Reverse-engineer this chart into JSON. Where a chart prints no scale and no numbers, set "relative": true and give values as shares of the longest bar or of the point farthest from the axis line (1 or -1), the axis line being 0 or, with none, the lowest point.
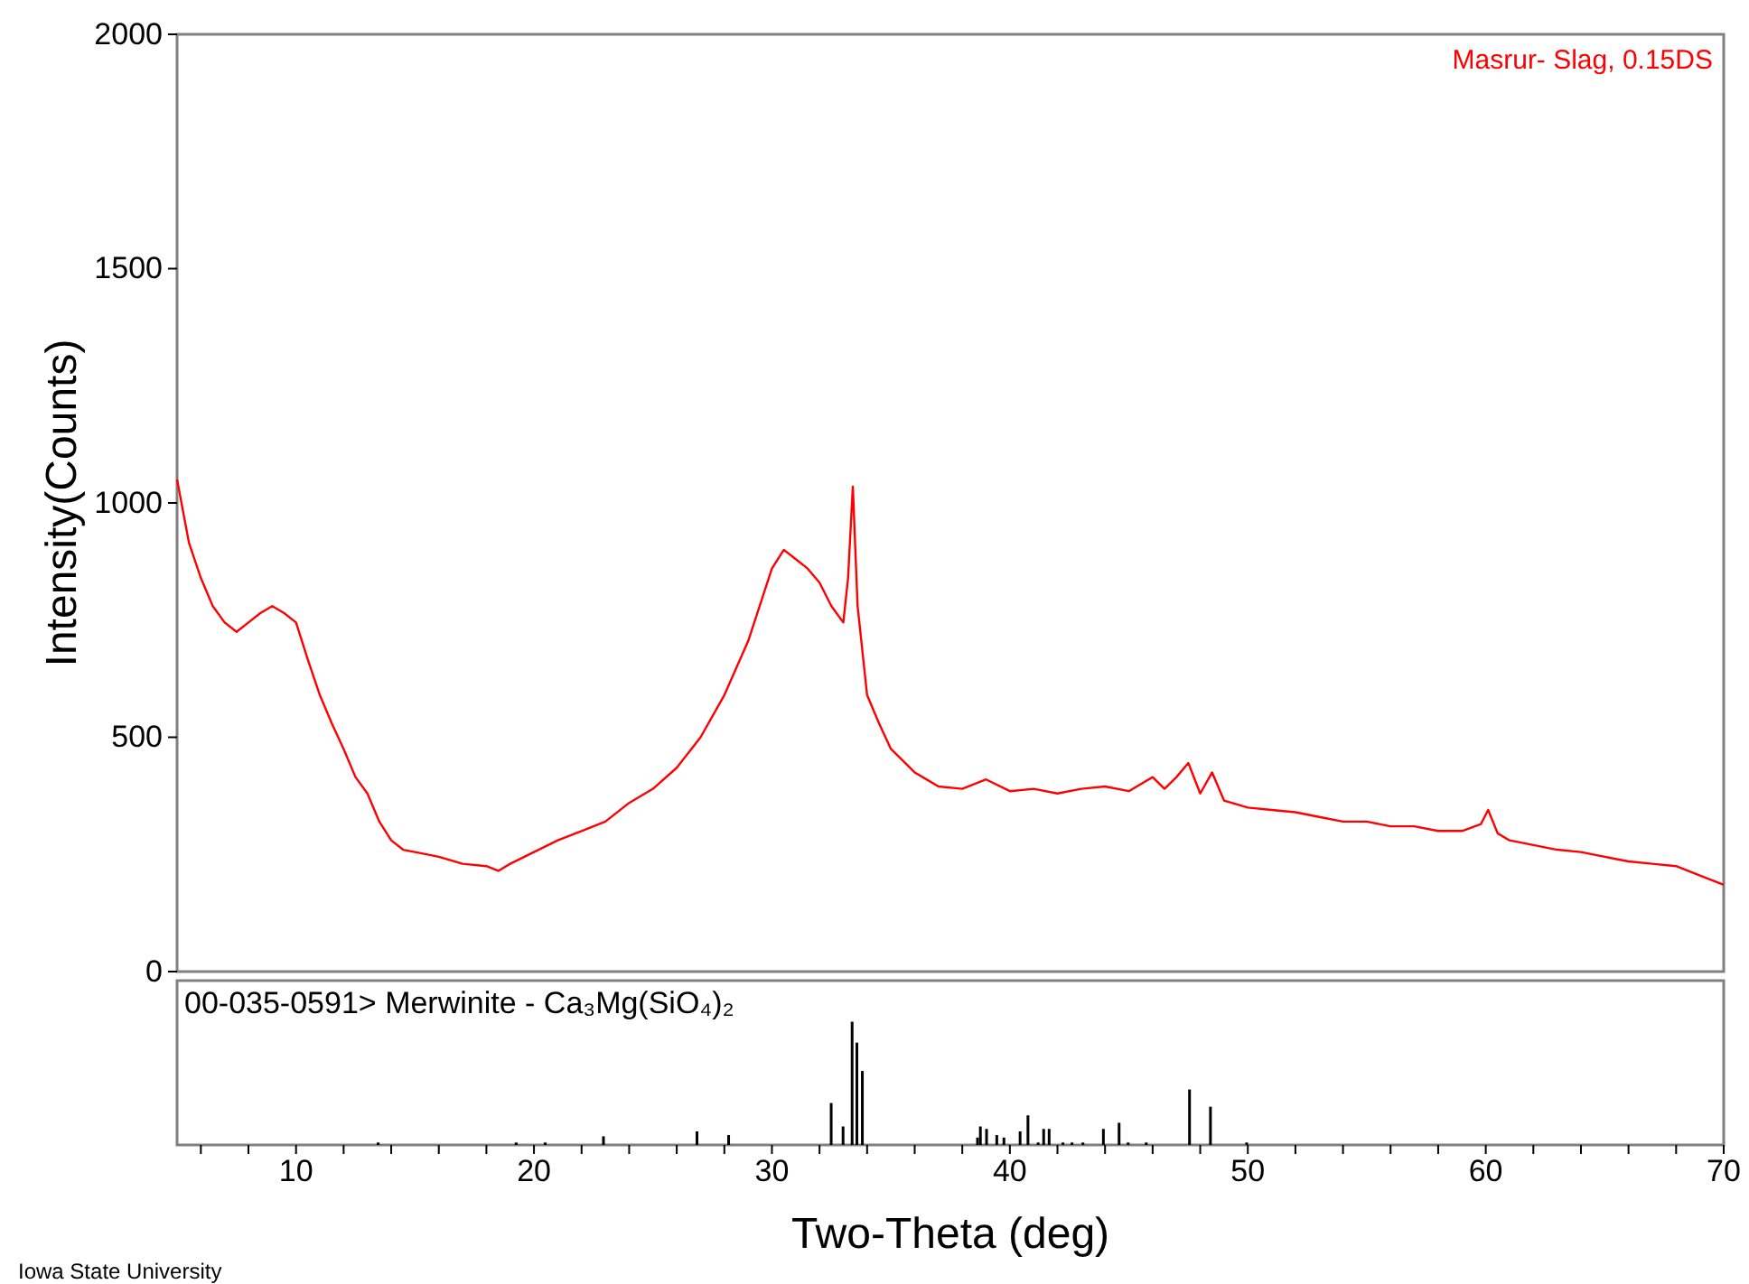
{
  "chart_data": [
    {
      "type": "line",
      "ylabel": "Intensity(Counts)",
      "xlim": [
        5,
        70
      ],
      "ylim": [
        0,
        2000
      ],
      "yticks": [
        0,
        500,
        1000,
        1500,
        2000
      ],
      "tick_labels": "y",
      "legend": "top right",
      "grid": false,
      "marker": "none",
      "line_style": "solid",
      "x": [
        5,
        5.5,
        6,
        6.5,
        7,
        7.5,
        8,
        8.5,
        9,
        9.5,
        10,
        10.5,
        11,
        11.5,
        12,
        12.5,
        13,
        13.5,
        14,
        14.5,
        15,
        16,
        17,
        18,
        18.5,
        19,
        20,
        21,
        22,
        23,
        24,
        25,
        26,
        27,
        28,
        29,
        30,
        30.5,
        31,
        31.5,
        32,
        32.5,
        33,
        33.2,
        33.4,
        33.6,
        34,
        34.5,
        35,
        36,
        37,
        38,
        39,
        40,
        41,
        42,
        43,
        44,
        45,
        46,
        46.5,
        47,
        47.5,
        48,
        48.5,
        49,
        50,
        51,
        52,
        53,
        54,
        55,
        56,
        57,
        58,
        59,
        59.8,
        60.1,
        60.5,
        61,
        62,
        63,
        64,
        65,
        66,
        67,
        68,
        69,
        70
      ],
      "series": [
        {
          "name": "Masrur- Slag, 0.15DS",
          "color": "#ff0000",
          "values": [
            1050,
            915,
            840,
            780,
            745,
            725,
            745,
            765,
            780,
            765,
            745,
            665,
            590,
            530,
            475,
            415,
            380,
            320,
            280,
            260,
            255,
            245,
            230,
            225,
            215,
            230,
            255,
            280,
            300,
            320,
            360,
            390,
            435,
            500,
            590,
            705,
            860,
            900,
            880,
            860,
            830,
            780,
            745,
            840,
            1035,
            780,
            590,
            530,
            475,
            425,
            395,
            390,
            410,
            385,
            390,
            380,
            390,
            395,
            385,
            415,
            390,
            415,
            445,
            380,
            425,
            365,
            350,
            345,
            340,
            330,
            320,
            320,
            310,
            310,
            300,
            300,
            315,
            345,
            295,
            280,
            270,
            260,
            255,
            245,
            235,
            230,
            225,
            205,
            185
          ]
        }
      ]
    },
    {
      "type": "bar",
      "title": "00-035-0591> Merwinite - Ca₃Mg(SiO₄)₂",
      "xlabel": "Two-Theta (deg)",
      "relative": true,
      "tick_labels": "x",
      "color": "#000000",
      "annotations": [
        "Iowa State University"
      ],
      "xlim": [
        5,
        70
      ],
      "xticks": [
        {
          "value": 6,
          "label": null
        },
        {
          "value": 8,
          "label": null
        },
        10,
        {
          "value": 12,
          "label": null
        },
        {
          "value": 14,
          "label": null
        },
        {
          "value": 16,
          "label": null
        },
        {
          "value": 18,
          "label": null
        },
        20,
        {
          "value": 22,
          "label": null
        },
        {
          "value": 24,
          "label": null
        },
        {
          "value": 26,
          "label": null
        },
        {
          "value": 28,
          "label": null
        },
        30,
        {
          "value": 32,
          "label": null
        },
        {
          "value": 34,
          "label": null
        },
        {
          "value": 36,
          "label": null
        },
        {
          "value": 38,
          "label": null
        },
        40,
        {
          "value": 42,
          "label": null
        },
        {
          "value": 44,
          "label": null
        },
        {
          "value": 46,
          "label": null
        },
        {
          "value": 48,
          "label": null
        },
        50,
        {
          "value": 52,
          "label": null
        },
        {
          "value": 54,
          "label": null
        },
        {
          "value": 56,
          "label": null
        },
        {
          "value": 58,
          "label": null
        },
        60,
        {
          "value": 62,
          "label": null
        },
        {
          "value": 64,
          "label": null
        },
        {
          "value": 66,
          "label": null
        },
        {
          "value": 68,
          "label": null
        },
        70
      ],
      "x": [
        13.45,
        19.25,
        20.47,
        22.92,
        26.85,
        28.18,
        32.49,
        32.99,
        33.37,
        33.57,
        33.8,
        38.64,
        38.76,
        39.02,
        39.45,
        39.75,
        40.43,
        40.76,
        41.19,
        41.42,
        41.65,
        42.23,
        42.61,
        43.07,
        43.93,
        44.59,
        44.97,
        45.73,
        47.55,
        48.43,
        49.95
      ],
      "values": [
        0.02,
        0.02,
        0.02,
        0.07,
        0.11,
        0.08,
        0.34,
        0.15,
        1,
        0.83,
        0.6,
        0.06,
        0.15,
        0.13,
        0.08,
        0.06,
        0.11,
        0.24,
        0.02,
        0.13,
        0.13,
        0.02,
        0.02,
        0.02,
        0.13,
        0.18,
        0.02,
        0.02,
        0.45,
        0.31,
        0.02
      ]
    }
  ]
}
